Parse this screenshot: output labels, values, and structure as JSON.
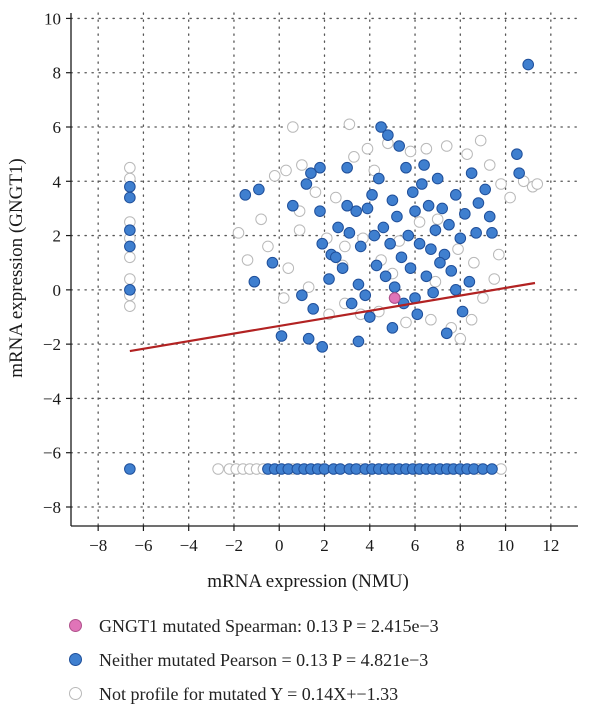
{
  "chart_data": {
    "type": "scatter",
    "xlabel": "mRNA expression (NMU)",
    "ylabel": "mRNA expression (GNGT1)",
    "xlim": [
      -9.2,
      13.2
    ],
    "ylim": [
      -8.7,
      10.2
    ],
    "xticks": [
      -8,
      -6,
      -4,
      -2,
      0,
      2,
      4,
      6,
      8,
      10,
      12
    ],
    "yticks": [
      -8,
      -6,
      -4,
      -2,
      0,
      2,
      4,
      6,
      8,
      10
    ],
    "grid": true,
    "grid_style": "dotted",
    "regression_line": {
      "slope": 0.14,
      "intercept": -1.33,
      "x_range": [
        -6.6,
        11.3
      ],
      "color": "#b22222"
    },
    "series": [
      {
        "name": "GNGT1 mutated",
        "color": "#e074b8",
        "edge": "#b0528c",
        "points": [
          [
            5.1,
            -0.3
          ]
        ]
      },
      {
        "name": "Neither mutated",
        "color": "#3f7fcf",
        "edge": "#1f4f9a",
        "points": [
          [
            -6.6,
            3.8
          ],
          [
            -6.6,
            3.4
          ],
          [
            -6.6,
            2.2
          ],
          [
            -6.6,
            1.6
          ],
          [
            -6.6,
            0.0
          ],
          [
            -6.6,
            -6.6
          ],
          [
            -1.5,
            3.5
          ],
          [
            -0.9,
            3.7
          ],
          [
            -0.3,
            1.0
          ],
          [
            -1.1,
            0.3
          ],
          [
            0.6,
            3.1
          ],
          [
            1.2,
            3.9
          ],
          [
            1.4,
            4.3
          ],
          [
            1.8,
            4.5
          ],
          [
            1.8,
            2.9
          ],
          [
            1.9,
            1.7
          ],
          [
            2.3,
            1.3
          ],
          [
            2.5,
            1.2
          ],
          [
            2.2,
            0.4
          ],
          [
            1.5,
            -0.7
          ],
          [
            1.0,
            -0.2
          ],
          [
            0.1,
            -1.7
          ],
          [
            1.3,
            -1.8
          ],
          [
            1.9,
            -2.1
          ],
          [
            2.8,
            0.8
          ],
          [
            3.0,
            4.5
          ],
          [
            3.1,
            2.1
          ],
          [
            3.4,
            2.9
          ],
          [
            3.6,
            1.6
          ],
          [
            3.9,
            3.0
          ],
          [
            3.5,
            0.2
          ],
          [
            3.2,
            -0.5
          ],
          [
            3.8,
            -0.2
          ],
          [
            4.0,
            -1.0
          ],
          [
            3.5,
            -1.9
          ],
          [
            4.1,
            3.5
          ],
          [
            4.4,
            4.1
          ],
          [
            4.5,
            6.0
          ],
          [
            4.8,
            5.7
          ],
          [
            5.0,
            3.3
          ],
          [
            5.3,
            5.3
          ],
          [
            5.6,
            4.5
          ],
          [
            4.6,
            2.3
          ],
          [
            4.9,
            1.7
          ],
          [
            5.2,
            2.7
          ],
          [
            5.4,
            1.2
          ],
          [
            4.7,
            0.5
          ],
          [
            5.1,
            0.1
          ],
          [
            5.5,
            -0.5
          ],
          [
            5.0,
            -1.4
          ],
          [
            5.8,
            0.8
          ],
          [
            6.0,
            2.9
          ],
          [
            6.3,
            3.9
          ],
          [
            6.6,
            3.1
          ],
          [
            6.9,
            2.2
          ],
          [
            6.2,
            1.7
          ],
          [
            6.5,
            0.5
          ],
          [
            6.8,
            -0.1
          ],
          [
            6.0,
            -0.3
          ],
          [
            7.0,
            4.1
          ],
          [
            7.2,
            3.0
          ],
          [
            7.5,
            2.4
          ],
          [
            7.8,
            3.5
          ],
          [
            7.3,
            1.3
          ],
          [
            7.6,
            0.7
          ],
          [
            8.0,
            1.9
          ],
          [
            8.2,
            2.8
          ],
          [
            8.5,
            4.3
          ],
          [
            8.7,
            2.1
          ],
          [
            7.8,
            0.0
          ],
          [
            8.1,
            -0.8
          ],
          [
            7.4,
            -1.6
          ],
          [
            6.1,
            -0.9
          ],
          [
            8.8,
            3.2
          ],
          [
            9.1,
            3.7
          ],
          [
            9.3,
            2.7
          ],
          [
            9.4,
            2.1
          ],
          [
            10.5,
            5.0
          ],
          [
            10.6,
            4.3
          ],
          [
            11.0,
            8.3
          ],
          [
            4.2,
            2.0
          ],
          [
            3.0,
            3.1
          ],
          [
            5.7,
            2.0
          ],
          [
            6.7,
            1.5
          ],
          [
            2.6,
            2.3
          ],
          [
            4.3,
            0.9
          ],
          [
            5.9,
            3.6
          ],
          [
            7.1,
            1.0
          ],
          [
            8.4,
            0.3
          ],
          [
            6.4,
            4.6
          ],
          [
            -0.5,
            -6.6
          ],
          [
            -0.2,
            -6.6
          ],
          [
            0.1,
            -6.6
          ],
          [
            0.4,
            -6.6
          ],
          [
            0.8,
            -6.6
          ],
          [
            1.1,
            -6.6
          ],
          [
            1.4,
            -6.6
          ],
          [
            1.7,
            -6.6
          ],
          [
            2.0,
            -6.6
          ],
          [
            2.4,
            -6.6
          ],
          [
            2.7,
            -6.6
          ],
          [
            3.1,
            -6.6
          ],
          [
            3.4,
            -6.6
          ],
          [
            3.8,
            -6.6
          ],
          [
            4.1,
            -6.6
          ],
          [
            4.4,
            -6.6
          ],
          [
            4.7,
            -6.6
          ],
          [
            5.0,
            -6.6
          ],
          [
            5.3,
            -6.6
          ],
          [
            5.6,
            -6.6
          ],
          [
            5.9,
            -6.6
          ],
          [
            6.2,
            -6.6
          ],
          [
            6.5,
            -6.6
          ],
          [
            6.8,
            -6.6
          ],
          [
            7.1,
            -6.6
          ],
          [
            7.4,
            -6.6
          ],
          [
            7.7,
            -6.6
          ],
          [
            8.0,
            -6.6
          ],
          [
            8.3,
            -6.6
          ],
          [
            8.6,
            -6.6
          ],
          [
            9.0,
            -6.6
          ],
          [
            9.4,
            -6.6
          ]
        ]
      },
      {
        "name": "Not profile for mutated",
        "color": "#ffffff",
        "edge": "#b9b9b9",
        "points": [
          [
            -6.6,
            4.5
          ],
          [
            -6.6,
            4.1
          ],
          [
            -6.6,
            2.5
          ],
          [
            -6.6,
            1.9
          ],
          [
            -6.6,
            1.2
          ],
          [
            -6.6,
            0.4
          ],
          [
            -6.6,
            -0.2
          ],
          [
            -6.6,
            -0.6
          ],
          [
            -1.8,
            2.1
          ],
          [
            -1.4,
            1.1
          ],
          [
            -0.8,
            2.6
          ],
          [
            -0.2,
            4.2
          ],
          [
            0.3,
            4.4
          ],
          [
            0.6,
            6.0
          ],
          [
            1.0,
            4.6
          ],
          [
            0.9,
            2.2
          ],
          [
            1.6,
            3.6
          ],
          [
            2.5,
            3.4
          ],
          [
            3.1,
            6.1
          ],
          [
            2.8,
            0.9
          ],
          [
            0.4,
            0.8
          ],
          [
            -0.5,
            1.6
          ],
          [
            0.2,
            -0.3
          ],
          [
            1.3,
            0.1
          ],
          [
            3.3,
            4.9
          ],
          [
            3.9,
            5.2
          ],
          [
            4.8,
            5.4
          ],
          [
            5.8,
            5.1
          ],
          [
            6.5,
            5.2
          ],
          [
            7.4,
            5.3
          ],
          [
            8.3,
            5.0
          ],
          [
            8.9,
            5.5
          ],
          [
            9.3,
            4.6
          ],
          [
            9.8,
            3.9
          ],
          [
            10.2,
            3.4
          ],
          [
            11.2,
            3.8
          ],
          [
            11.4,
            3.9
          ],
          [
            10.8,
            4.0
          ],
          [
            9.7,
            1.3
          ],
          [
            9.5,
            0.4
          ],
          [
            9.0,
            -0.3
          ],
          [
            8.5,
            -1.1
          ],
          [
            8.0,
            -1.8
          ],
          [
            7.6,
            -1.4
          ],
          [
            6.7,
            -1.1
          ],
          [
            5.6,
            -1.2
          ],
          [
            4.4,
            -0.8
          ],
          [
            3.6,
            -0.9
          ],
          [
            2.9,
            -0.5
          ],
          [
            2.2,
            -0.9
          ],
          [
            6.2,
            2.5
          ],
          [
            7.0,
            2.6
          ],
          [
            5.3,
            1.8
          ],
          [
            4.5,
            1.1
          ],
          [
            3.7,
            1.9
          ],
          [
            7.9,
            1.5
          ],
          [
            8.6,
            1.0
          ],
          [
            6.9,
            0.3
          ],
          [
            5.0,
            0.6
          ],
          [
            2.1,
            1.9
          ],
          [
            -2.2,
            -6.6
          ],
          [
            -1.9,
            -6.6
          ],
          [
            -1.6,
            -6.6
          ],
          [
            -1.3,
            -6.6
          ],
          [
            -1.0,
            -6.6
          ],
          [
            -0.7,
            -6.6
          ],
          [
            0.6,
            -6.6
          ],
          [
            1.9,
            -6.6
          ],
          [
            3.6,
            -6.6
          ],
          [
            4.9,
            -6.6
          ],
          [
            6.0,
            -6.6
          ],
          [
            7.5,
            -6.6
          ],
          [
            8.8,
            -6.6
          ],
          [
            9.8,
            -6.6
          ],
          [
            -2.7,
            -6.6
          ],
          [
            0.9,
            2.9
          ],
          [
            2.9,
            1.6
          ],
          [
            4.2,
            4.4
          ]
        ]
      }
    ],
    "legend": {
      "placement": "bottom",
      "entries": [
        "GNGT1 mutated Spearman: 0.13 P = 2.415e−3",
        "Neither mutated Pearson = 0.13 P = 4.821e−3",
        "Not profile for mutated Y = 0.14X+−1.33"
      ]
    }
  }
}
